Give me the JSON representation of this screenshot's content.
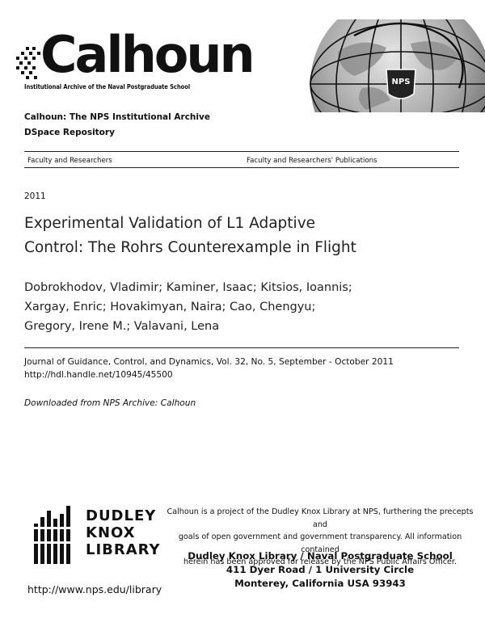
{
  "header": {
    "logo_text": "Calhoun",
    "logo_tagline": "Institutional Archive of the Naval Postgraduate School",
    "seal_text": "NPS",
    "archive_name": "Calhoun: The NPS Institutional Archive",
    "repository": "DSpace Repository"
  },
  "collections": {
    "left": "Faculty and Researchers",
    "right": "Faculty and Researchers' Publications"
  },
  "record": {
    "year": "2011",
    "title_line1": "Experimental Validation of L1 Adaptive",
    "title_line2": "Control:  The Rohrs Counterexample in Flight",
    "authors_line1": "Dobrokhodov, Vladimir; Kaminer, Isaac; Kitsios, Ioannis;",
    "authors_line2": "Xargay, Enric; Hovakimyan, Naira; Cao, Chengyu;",
    "authors_line3": "Gregory, Irene M.; Valavani, Lena",
    "citation": "Journal of Guidance, Control, and Dynamics, Vol. 32, No. 5, September - October 2011",
    "handle_url": "http://hdl.handle.net/10945/45500",
    "downloaded": "Downloaded from NPS Archive: Calhoun"
  },
  "footer": {
    "dk_line1": "DUDLEY",
    "dk_line2": "KNOX",
    "dk_line3": "LIBRARY",
    "about_line1": "Calhoun is a project of the Dudley Knox Library at NPS, furthering the precepts and",
    "about_line2": "goals of open government and government transparency. All information contained",
    "about_line3": "herein has been approved for release by the NPS Public Affairs Officer.",
    "address_line1": "Dudley Knox Library  /  Naval Postgraduate School",
    "address_line2": "411 Dyer Road  /  1 University Circle",
    "address_line3": "Monterey, California USA 93943",
    "library_url": "http://www.nps.edu/library"
  }
}
